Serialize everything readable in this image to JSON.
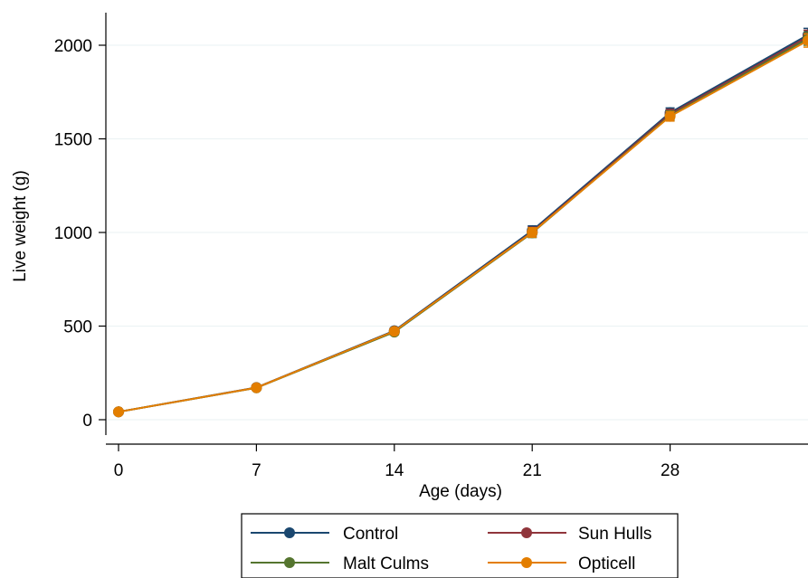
{
  "chart_data": {
    "type": "line",
    "title": "",
    "xlabel": "Age (days)",
    "ylabel": "Live weight (g)",
    "x": [
      0,
      7,
      14,
      21,
      28,
      35
    ],
    "xticks": [
      0,
      7,
      14,
      21,
      28
    ],
    "xtick_labels": [
      "0",
      "7",
      "14",
      "21",
      "28"
    ],
    "yticks": [
      0,
      500,
      1000,
      1500,
      2000
    ],
    "ytick_labels": [
      "0",
      "500",
      "1000",
      "1500",
      "2000"
    ],
    "xlim": [
      -0.5,
      35
    ],
    "ylim": [
      -80,
      2170
    ],
    "grid": "horizontal",
    "legend_position": "bottom",
    "series": [
      {
        "name": "Control",
        "color": "#1a476f",
        "values": [
          42,
          172,
          475,
          1010,
          1640,
          2055
        ],
        "error": [
          5,
          8,
          15,
          25,
          25,
          35
        ]
      },
      {
        "name": "Sun Hulls",
        "color": "#90353b",
        "values": [
          42,
          171,
          472,
          1003,
          1632,
          2045
        ],
        "error": [
          5,
          8,
          15,
          25,
          25,
          35
        ]
      },
      {
        "name": "Malt Culms",
        "color": "#55752f",
        "values": [
          42,
          170,
          468,
          998,
          1624,
          2035
        ],
        "error": [
          5,
          8,
          15,
          25,
          25,
          35
        ]
      },
      {
        "name": "Opticell",
        "color": "#e37e00",
        "values": [
          42,
          171,
          472,
          1000,
          1620,
          2025
        ],
        "error": [
          5,
          8,
          15,
          25,
          25,
          35
        ]
      }
    ]
  }
}
